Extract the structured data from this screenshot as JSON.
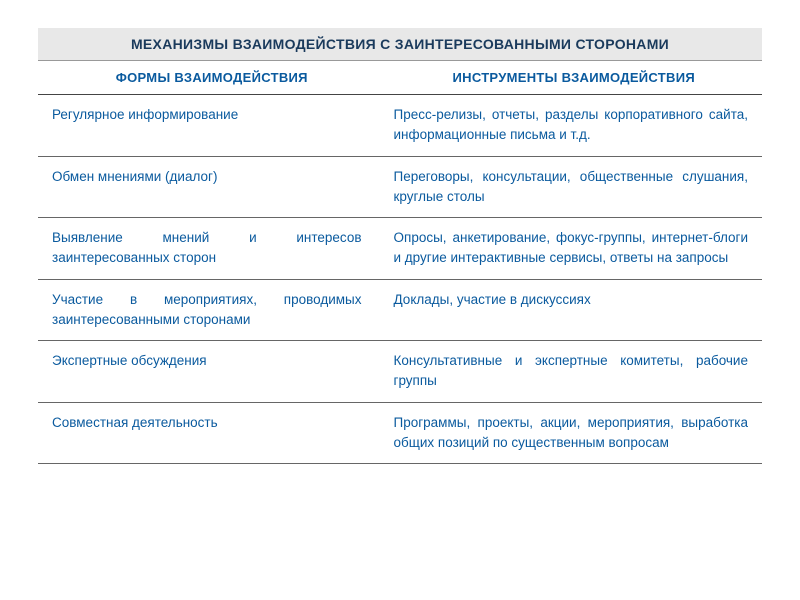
{
  "table": {
    "title": "МЕХАНИЗМЫ ВЗАИМОДЕЙСТВИЯ С ЗАИНТЕРЕСОВАННЫМИ СТОРОНАМИ",
    "columns": [
      "ФОРМЫ ВЗАИМОДЕЙСТВИЯ",
      "ИНСТРУМЕНТЫ ВЗАИМОДЕЙСТВИЯ"
    ],
    "rows": [
      {
        "form": "Регулярное информирование",
        "instrument": "Пресс-релизы, отчеты, разделы корпоративного сайта, информационные письма и т.д."
      },
      {
        "form": "Обмен мнениями (диалог)",
        "instrument": "Переговоры, консультации, общественные слушания, круглые столы"
      },
      {
        "form": "Выявление мнений и интересов заинтересованных сторон",
        "instrument": "Опросы, анкетирование, фокус-группы, интернет-блоги и другие интерактивные сервисы, ответы на запросы"
      },
      {
        "form": "Участие в мероприятиях, проводимых заинтересованными сторонами",
        "instrument": "Доклады, участие в дискуссиях"
      },
      {
        "form": "Экспертные обсуждения",
        "instrument": "Консультативные и экспертные комитеты, рабочие группы"
      },
      {
        "form": "Совместная деятельность",
        "instrument": "Программы, проекты, акции, мероприятия, выработка общих позиций по существенным вопросам"
      }
    ],
    "colors": {
      "header_bg": "#e8e8e8",
      "header_text": "#1a3a5c",
      "subheader_text": "#0a5a9e",
      "cell_text": "#0a5a9e",
      "border": "#666666",
      "background": "#ffffff"
    },
    "fontsize": {
      "title": 14,
      "subheader": 13,
      "cell": 13.5
    }
  }
}
